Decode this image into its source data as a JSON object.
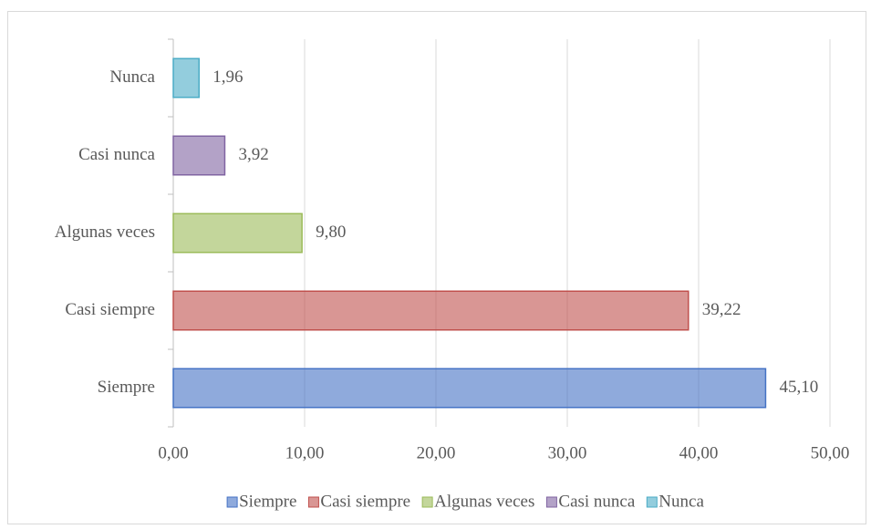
{
  "chart_data": {
    "type": "bar",
    "orientation": "horizontal",
    "categories": [
      "Siempre",
      "Casi siempre",
      "Algunas veces",
      "Casi nunca",
      "Nunca"
    ],
    "values": [
      45.1,
      39.22,
      9.8,
      3.92,
      1.96
    ],
    "value_labels": [
      "45,10",
      "39,22",
      "9,80",
      "3,92",
      "1,96"
    ],
    "colors": [
      "#4472c4",
      "#c0504d",
      "#9bbb59",
      "#8064a2",
      "#4bacc6"
    ],
    "xlim": [
      0,
      50
    ],
    "xticks": [
      {
        "value": 0,
        "label": "0,00"
      },
      {
        "value": 10,
        "label": "10,00"
      },
      {
        "value": 20,
        "label": "20,00"
      },
      {
        "value": 30,
        "label": "30,00"
      },
      {
        "value": 40,
        "label": "40,00"
      },
      {
        "value": 50,
        "label": "50,00"
      }
    ],
    "grid": true,
    "legend": "bottom"
  }
}
